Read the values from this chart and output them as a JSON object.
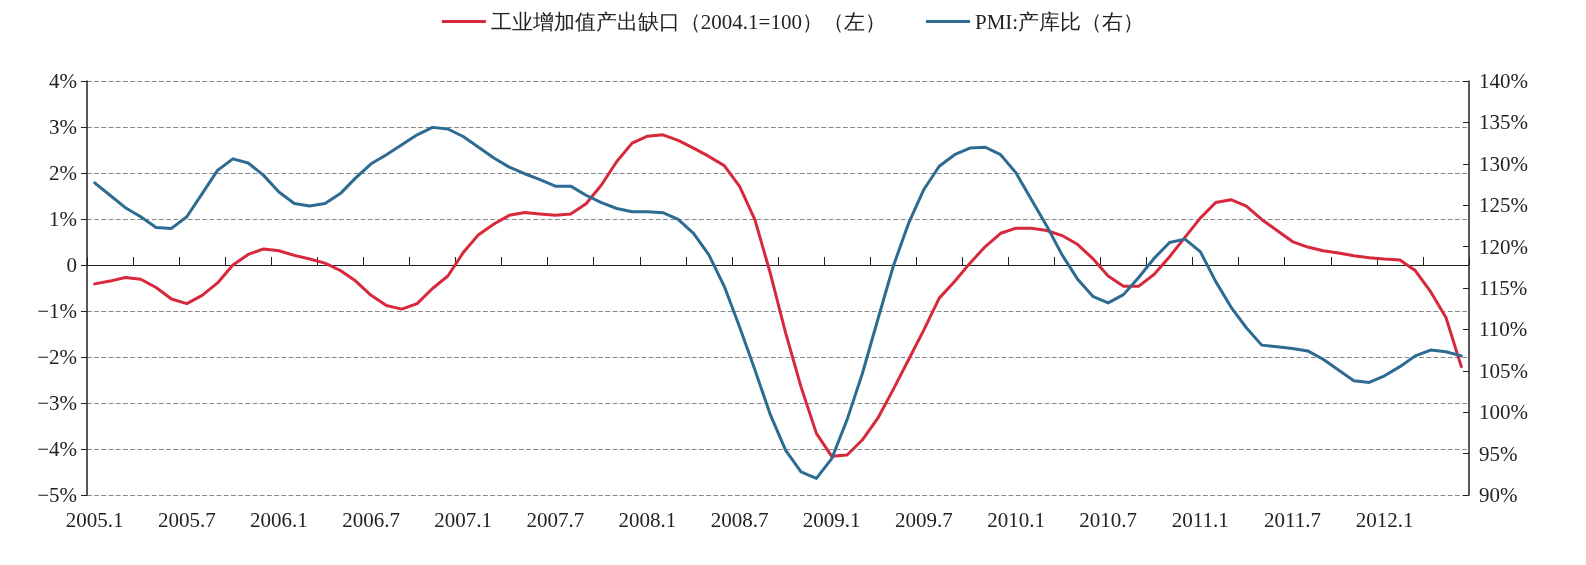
{
  "chart_data": {
    "type": "line",
    "categories": [
      "2005.1",
      null,
      null,
      null,
      null,
      null,
      "2005.7",
      null,
      null,
      null,
      null,
      null,
      "2006.1",
      null,
      null,
      null,
      null,
      null,
      "2006.7",
      null,
      null,
      null,
      null,
      null,
      "2007.1",
      null,
      null,
      null,
      null,
      null,
      "2007.7",
      null,
      null,
      null,
      null,
      null,
      "2008.1",
      null,
      null,
      null,
      null,
      null,
      "2008.7",
      null,
      null,
      null,
      null,
      null,
      "2009.1",
      null,
      null,
      null,
      null,
      null,
      "2009.7",
      null,
      null,
      null,
      null,
      null,
      "2010.1",
      null,
      null,
      null,
      null,
      null,
      "2010.7",
      null,
      null,
      null,
      null,
      null,
      "2011.1",
      null,
      null,
      null,
      null,
      null,
      "2011.7",
      null,
      null,
      null,
      null,
      null,
      "2012.1",
      null,
      null,
      null,
      null,
      null
    ],
    "series": [
      {
        "name": "工业增加值产出缺口（2004.1=100）（左）",
        "color": "#d7283c",
        "values": [
          -0.41,
          -0.35,
          -0.27,
          -0.31,
          -0.49,
          -0.74,
          -0.84,
          -0.66,
          -0.39,
          0,
          0.23,
          0.35,
          0.31,
          0.21,
          0.13,
          0.04,
          -0.12,
          -0.35,
          -0.66,
          -0.88,
          -0.96,
          -0.84,
          -0.51,
          -0.24,
          0.27,
          0.66,
          0.89,
          1.08,
          1.14,
          1.11,
          1.08,
          1.11,
          1.33,
          1.74,
          2.25,
          2.65,
          2.8,
          2.83,
          2.71,
          2.54,
          2.36,
          2.16,
          1.71,
          0.98,
          -0.18,
          -1.48,
          -2.65,
          -3.66,
          -4.16,
          -4.13,
          -3.8,
          -3.33,
          -2.71,
          -2.06,
          -1.41,
          -0.72,
          -0.36,
          0.04,
          0.4,
          0.69,
          0.8,
          0.8,
          0.75,
          0.64,
          0.45,
          0.14,
          -0.24,
          -0.46,
          -0.46,
          -0.2,
          0.18,
          0.6,
          1.02,
          1.36,
          1.42,
          1.28,
          0.99,
          0.75,
          0.51,
          0.39,
          0.31,
          0.26,
          0.2,
          0.16,
          0.13,
          0.11,
          -0.12,
          -0.58,
          -1.14,
          -2.21
        ]
      },
      {
        "name": "PMI:产库比（右）",
        "color": "#2e6b93",
        "axis": "y2",
        "values": [
          127.7,
          126.2,
          124.7,
          123.6,
          122.3,
          122.2,
          123.6,
          126.4,
          129.2,
          130.6,
          130.1,
          128.6,
          126.6,
          125.2,
          124.9,
          125.2,
          126.4,
          128.3,
          130.0,
          131.1,
          132.3,
          133.5,
          134.4,
          134.2,
          133.3,
          132.0,
          130.7,
          129.6,
          128.8,
          128.1,
          127.3,
          127.3,
          126.2,
          125.3,
          124.6,
          124.2,
          124.2,
          124.1,
          123.3,
          121.6,
          119.0,
          115.2,
          110.3,
          105.1,
          99.7,
          95.4,
          92.8,
          92.0,
          94.4,
          99.1,
          104.7,
          111.2,
          117.6,
          122.8,
          126.9,
          129.7,
          131.1,
          131.9,
          132.0,
          131.1,
          128.9,
          125.7,
          122.5,
          119.0,
          116.1,
          114.0,
          113.2,
          114.2,
          116.3,
          118.6,
          120.5,
          120.9,
          119.4,
          115.8,
          112.7,
          110.2,
          108.1,
          107.9,
          107.7,
          107.4,
          106.4,
          105.1,
          103.8,
          103.6,
          104.4,
          105.5,
          106.8,
          107.5,
          107.3,
          106.8
        ]
      }
    ],
    "ylim": [
      -5,
      4
    ],
    "yticks": [
      {
        "value": -5,
        "label": "−5%"
      },
      {
        "value": -4,
        "label": "−4%"
      },
      {
        "value": -3,
        "label": "−3%"
      },
      {
        "value": -2,
        "label": "−2%"
      },
      {
        "value": -1,
        "label": "−1%"
      },
      0,
      {
        "value": 1,
        "label": "1%"
      },
      {
        "value": 2,
        "label": "2%"
      },
      {
        "value": 3,
        "label": "3%"
      },
      {
        "value": 4,
        "label": "4%"
      }
    ],
    "y2lim": [
      90,
      140
    ],
    "y2ticks": [
      {
        "value": 90,
        "label": "90%"
      },
      {
        "value": 95,
        "label": "95%"
      },
      {
        "value": 100,
        "label": "100%"
      },
      {
        "value": 105,
        "label": "105%"
      },
      {
        "value": 110,
        "label": "110%"
      },
      {
        "value": 115,
        "label": "115%"
      },
      {
        "value": 120,
        "label": "120%"
      },
      {
        "value": 125,
        "label": "125%"
      },
      {
        "value": 130,
        "label": "130%"
      },
      {
        "value": 135,
        "label": "135%"
      },
      {
        "value": 140,
        "label": "140%"
      }
    ],
    "grid": "y",
    "legend": "top",
    "marker": "none",
    "line_style": "solid"
  }
}
